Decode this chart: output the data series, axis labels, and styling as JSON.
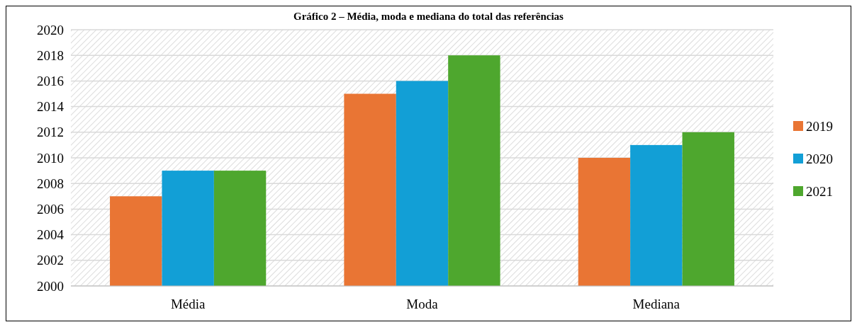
{
  "chart_data": {
    "type": "bar",
    "title": "Gráfico 2 – Média, moda e mediana do total das referências",
    "categories": [
      "Média",
      "Moda",
      "Mediana"
    ],
    "series": [
      {
        "name": "2019",
        "color": "#e97534",
        "values": [
          2007,
          2015,
          2010
        ]
      },
      {
        "name": "2020",
        "color": "#129fd6",
        "values": [
          2009,
          2016,
          2011
        ]
      },
      {
        "name": "2021",
        "color": "#4ea72e",
        "values": [
          2009,
          2018,
          2012
        ]
      }
    ],
    "ylim": [
      2000,
      2020
    ],
    "yticks": [
      2000,
      2002,
      2004,
      2006,
      2008,
      2010,
      2012,
      2014,
      2016,
      2018,
      2020
    ],
    "grid": "y",
    "legend": "right"
  }
}
